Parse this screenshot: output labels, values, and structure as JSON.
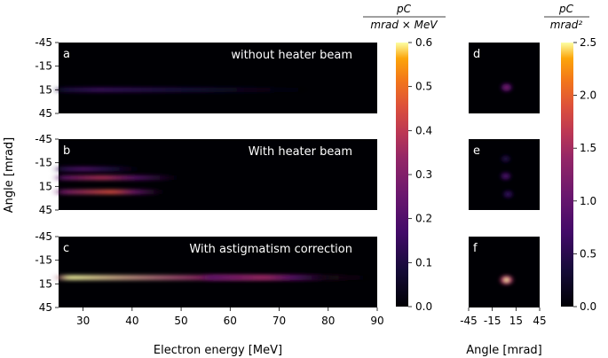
{
  "chart_data": [
    {
      "type": "heatmap",
      "panels": [
        {
          "letter": "a",
          "title": "without heater beam",
          "beams": [
            {
              "angle": 15,
              "e_start": 25,
              "e_end": 75,
              "peak_e": 33,
              "peak": 0.15
            }
          ]
        },
        {
          "letter": "b",
          "title": "With heater beam",
          "beams": [
            {
              "angle": -7,
              "e_start": 25,
              "e_end": 41,
              "peak_e": 30,
              "peak": 0.2
            },
            {
              "angle": 4,
              "e_start": 25,
              "e_end": 49,
              "peak_e": 34,
              "peak": 0.38
            },
            {
              "angle": 22,
              "e_start": 25,
              "e_end": 46,
              "peak_e": 36,
              "peak": 0.45
            }
          ]
        },
        {
          "letter": "c",
          "title": "With astigmatism correction",
          "beams": [
            {
              "angle": 7,
              "e_start": 25,
              "e_end": 88,
              "peak_e": 27,
              "peak": 0.6
            },
            {
              "angle": 7,
              "e_start": 55,
              "e_end": 80,
              "peak_e": 67,
              "peak": 0.35
            }
          ]
        }
      ],
      "xlabel": "Electron energy [MeV]",
      "ylabel": "Angle [mrad]",
      "xlim": [
        25,
        90
      ],
      "ylim": [
        -45,
        45
      ],
      "xticks": [
        "30",
        "40",
        "50",
        "60",
        "70",
        "80",
        "90"
      ],
      "yticks": [
        "-45",
        "-15",
        "15",
        "45"
      ],
      "colorbar": {
        "label_num": "pC",
        "label_den": "mrad × MeV",
        "ticks": [
          "0.0",
          "0.1",
          "0.2",
          "0.3",
          "0.4",
          "0.5",
          "0.6"
        ],
        "range": [
          0,
          0.6
        ]
      }
    },
    {
      "type": "heatmap",
      "panels": [
        {
          "letter": "d",
          "spots": [
            {
              "x": 3,
              "y": 12,
              "value": 1.3
            }
          ]
        },
        {
          "letter": "e",
          "spots": [
            {
              "x": 2,
              "y": -20,
              "value": 0.5
            },
            {
              "x": 2,
              "y": 2,
              "value": 0.9
            },
            {
              "x": 5,
              "y": 25,
              "value": 0.7
            }
          ]
        },
        {
          "letter": "f",
          "spots": [
            {
              "x": 3,
              "y": 10,
              "value": 2.5
            }
          ]
        }
      ],
      "xlabel": "Angle [mrad]",
      "xlim": [
        -45,
        45
      ],
      "ylim": [
        -45,
        45
      ],
      "xticks": [
        "-45",
        "-15",
        "15",
        "45"
      ],
      "colorbar": {
        "label_num": "pC",
        "label_den": "mrad²",
        "ticks": [
          "0.0",
          "0.5",
          "1.0",
          "1.5",
          "2.0",
          "2.5"
        ],
        "range": [
          0,
          2.5
        ]
      }
    }
  ]
}
